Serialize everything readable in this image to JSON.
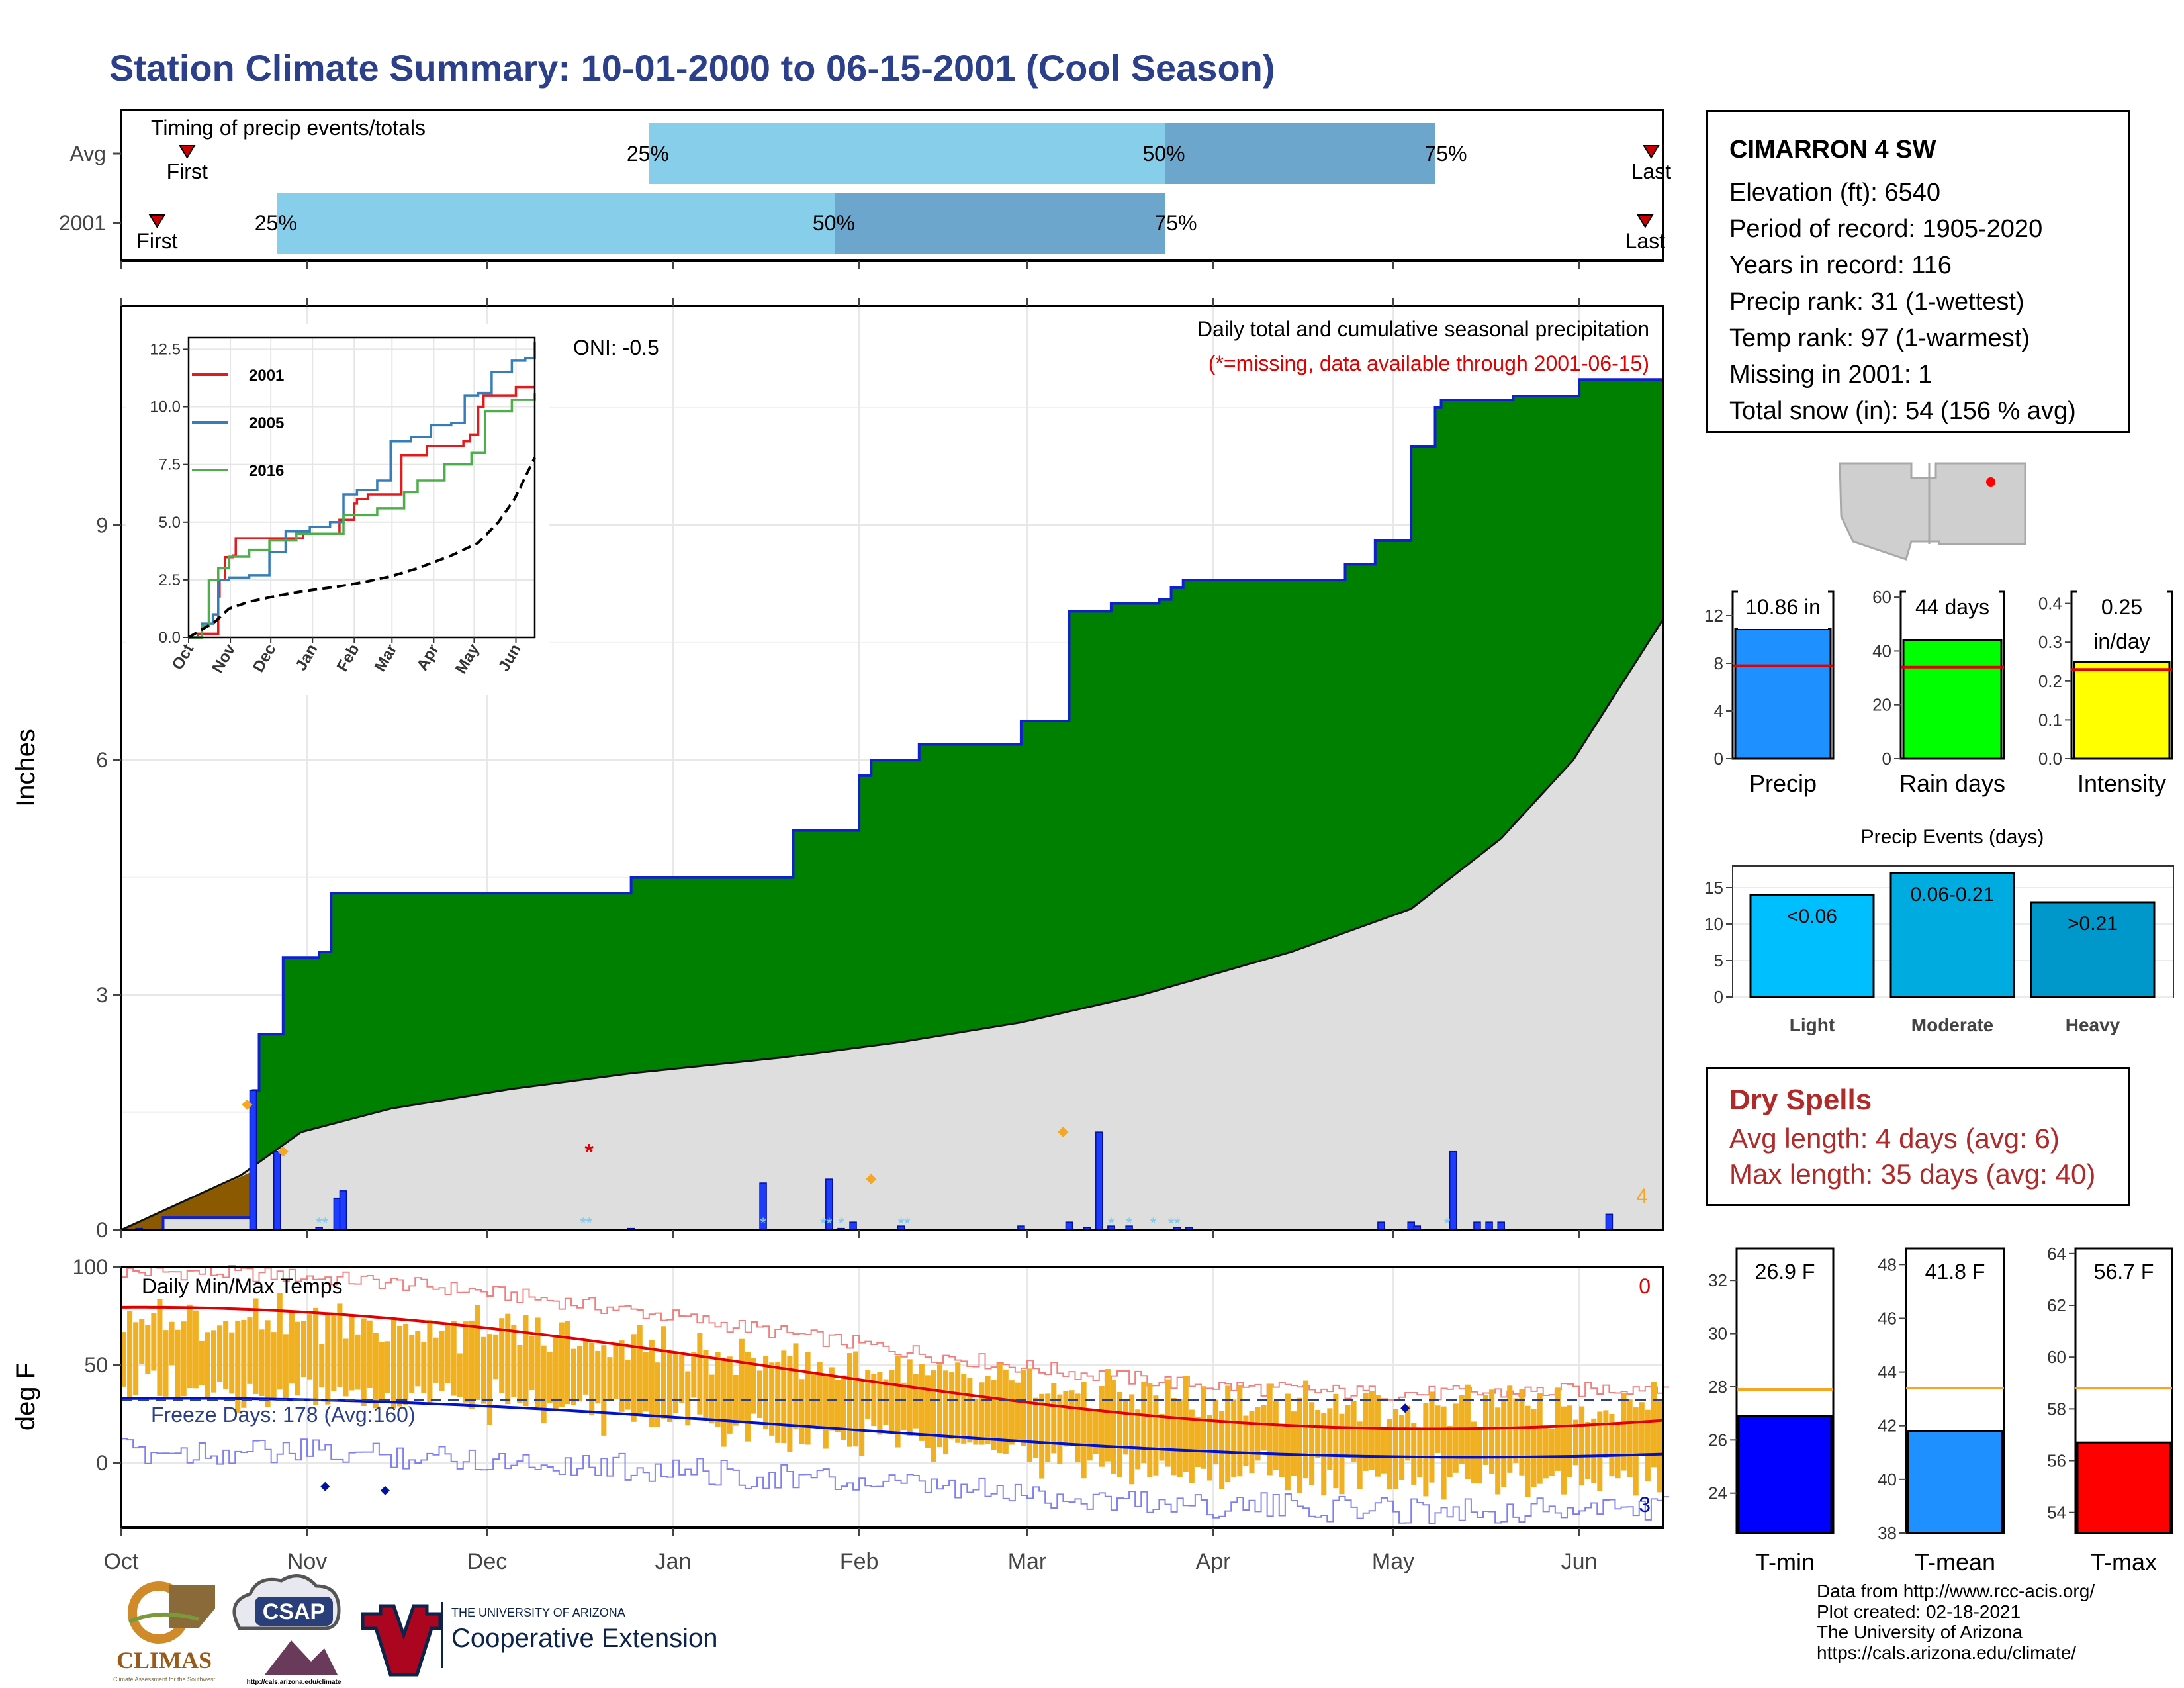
{
  "title": "Station Climate Summary: 10-01-2000 to 06-15-2001 (Cool Season)",
  "colors": {
    "title": "#2b3f8a",
    "light_blue": "#87ceeb",
    "mid_blue": "#6ca6cd",
    "green": "#008000",
    "brown": "#8b5a00",
    "grey": "#dedede",
    "precip_bar": "#1e90ff",
    "rain_bar": "#00ff00",
    "intensity_bar": "#ffff00",
    "tmin_bar": "#0000ff",
    "tmean_bar": "#1e90ff",
    "tmax_bar": "#ff0000",
    "dry_text": "#b02a2a",
    "temp_bar": "#f0b020"
  },
  "timing": {
    "title": "Timing of precip events/totals",
    "rows": [
      "Avg",
      "2001"
    ],
    "first_label": "First",
    "last_label": "Last",
    "q25_label": "25%",
    "q50_label": "50%",
    "q75_label": "75%",
    "x_domain_days": [
      0,
      257
    ],
    "avg": {
      "first": "2000-10-12",
      "q25": "2000-12-28",
      "q50": "2001-03-24",
      "q75": "2001-05-08",
      "last": "2001-06-13"
    },
    "y2001": {
      "first": "2000-10-07",
      "q25": "2000-10-27",
      "q50": "2001-01-28",
      "q75": "2001-03-24",
      "last": "2001-06-12"
    }
  },
  "precip_panel": {
    "title": "Daily total and cumulative seasonal precipitation",
    "missing_note": "(*=missing, data available through 2001-06-15)",
    "oni": "ONI: -0.5",
    "ylabel": "Inches",
    "yticks": [
      "0",
      "3",
      "6",
      "9"
    ],
    "yticks_val": [
      0,
      3,
      6,
      9
    ],
    "ylim": [
      0,
      11.8
    ],
    "corner_count": "4",
    "cumulative_steps": [
      [
        0,
        0
      ],
      [
        7,
        0.16
      ],
      [
        22,
        0.16
      ],
      [
        22,
        1.78
      ],
      [
        23,
        2.5
      ],
      [
        27,
        2.5
      ],
      [
        27,
        3.48
      ],
      [
        33,
        3.55
      ],
      [
        35,
        4.3
      ],
      [
        85,
        4.3
      ],
      [
        85,
        4.5
      ],
      [
        112,
        4.5
      ],
      [
        112,
        5.1
      ],
      [
        123,
        5.1
      ],
      [
        123,
        5.8
      ],
      [
        125,
        6.0
      ],
      [
        133,
        6.0
      ],
      [
        133,
        6.2
      ],
      [
        150,
        6.2
      ],
      [
        150,
        6.5
      ],
      [
        158,
        6.5
      ],
      [
        158,
        7.9
      ],
      [
        165,
        8.0
      ],
      [
        173,
        8.05
      ],
      [
        175,
        8.2
      ],
      [
        177,
        8.3
      ],
      [
        204,
        8.3
      ],
      [
        204,
        8.5
      ],
      [
        209,
        8.5
      ],
      [
        209,
        8.8
      ],
      [
        215,
        8.9
      ],
      [
        215,
        10.0
      ],
      [
        219,
        10.5
      ],
      [
        220,
        10.6
      ],
      [
        232,
        10.65
      ],
      [
        243,
        10.65
      ],
      [
        243,
        10.86
      ],
      [
        257,
        10.86
      ]
    ],
    "avg_cumulative": [
      [
        0,
        0
      ],
      [
        20,
        0.7
      ],
      [
        30,
        1.25
      ],
      [
        45,
        1.55
      ],
      [
        65,
        1.8
      ],
      [
        85,
        2.0
      ],
      [
        110,
        2.2
      ],
      [
        130,
        2.4
      ],
      [
        150,
        2.65
      ],
      [
        170,
        3.0
      ],
      [
        195,
        3.55
      ],
      [
        215,
        4.1
      ],
      [
        230,
        5.0
      ],
      [
        242,
        6.0
      ],
      [
        257,
        7.8
      ]
    ],
    "daily_bars": [
      [
        3,
        0.02
      ],
      [
        22,
        1.78
      ],
      [
        26,
        1.0
      ],
      [
        33,
        0.03
      ],
      [
        36,
        0.4
      ],
      [
        37,
        0.5
      ],
      [
        85,
        0.02
      ],
      [
        107,
        0.6
      ],
      [
        118,
        0.65
      ],
      [
        120,
        0.02
      ],
      [
        122,
        0.1
      ],
      [
        130,
        0.05
      ],
      [
        150,
        0.05
      ],
      [
        158,
        0.1
      ],
      [
        161,
        0.03
      ],
      [
        163,
        1.25
      ],
      [
        165,
        0.05
      ],
      [
        168,
        0.05
      ],
      [
        176,
        0.03
      ],
      [
        178,
        0.03
      ],
      [
        210,
        0.1
      ],
      [
        215,
        0.1
      ],
      [
        216,
        0.05
      ],
      [
        222,
        1.0
      ],
      [
        226,
        0.1
      ],
      [
        228,
        0.1
      ],
      [
        230,
        0.1
      ],
      [
        248,
        0.2
      ]
    ],
    "avg_daily_markers": [
      [
        21,
        1.6
      ],
      [
        27,
        1.0
      ],
      [
        157,
        1.25
      ],
      [
        125,
        0.65
      ]
    ],
    "missing_day": [
      78,
      1.0
    ]
  },
  "inset": {
    "yticks": [
      "0.0",
      "2.5",
      "5.0",
      "7.5",
      "10.0",
      "12.5"
    ],
    "yticks_val": [
      0,
      2.5,
      5,
      7.5,
      10,
      12.5
    ],
    "ylim": [
      0,
      13
    ],
    "xticks": [
      "Oct",
      "Nov",
      "Dec",
      "Jan",
      "Feb",
      "Mar",
      "Apr",
      "May",
      "Jun"
    ],
    "legend": [
      "2001",
      "2005",
      "2016"
    ],
    "series": [
      {
        "name": "2001",
        "color": "#e41a1c",
        "pts": [
          [
            0,
            0
          ],
          [
            7,
            0.16
          ],
          [
            22,
            1.78
          ],
          [
            23,
            2.5
          ],
          [
            27,
            3.48
          ],
          [
            33,
            3.55
          ],
          [
            35,
            4.3
          ],
          [
            85,
            4.3
          ],
          [
            85,
            4.5
          ],
          [
            112,
            4.5
          ],
          [
            112,
            5.1
          ],
          [
            123,
            5.1
          ],
          [
            123,
            5.8
          ],
          [
            125,
            6.0
          ],
          [
            133,
            6.0
          ],
          [
            133,
            6.2
          ],
          [
            150,
            6.2
          ],
          [
            158,
            7.9
          ],
          [
            177,
            8.3
          ],
          [
            204,
            8.3
          ],
          [
            204,
            8.5
          ],
          [
            209,
            8.8
          ],
          [
            215,
            10.0
          ],
          [
            219,
            10.5
          ],
          [
            243,
            10.65
          ],
          [
            243,
            10.86
          ],
          [
            257,
            10.86
          ]
        ]
      },
      {
        "name": "2005",
        "color": "#377eb8",
        "pts": [
          [
            0,
            0
          ],
          [
            10,
            0.6
          ],
          [
            18,
            1.0
          ],
          [
            22,
            2.5
          ],
          [
            30,
            2.6
          ],
          [
            45,
            2.7
          ],
          [
            60,
            3.7
          ],
          [
            72,
            4.6
          ],
          [
            90,
            4.8
          ],
          [
            105,
            5.0
          ],
          [
            115,
            6.2
          ],
          [
            125,
            6.4
          ],
          [
            140,
            6.8
          ],
          [
            150,
            8.5
          ],
          [
            165,
            8.7
          ],
          [
            180,
            9.2
          ],
          [
            195,
            9.3
          ],
          [
            205,
            10.5
          ],
          [
            215,
            10.6
          ],
          [
            225,
            11.5
          ],
          [
            240,
            12.0
          ],
          [
            250,
            12.1
          ],
          [
            257,
            12.8
          ]
        ]
      },
      {
        "name": "2016",
        "color": "#4daf4a",
        "pts": [
          [
            0,
            0
          ],
          [
            10,
            0.5
          ],
          [
            15,
            2.5
          ],
          [
            22,
            3.0
          ],
          [
            30,
            3.5
          ],
          [
            45,
            3.8
          ],
          [
            60,
            4.2
          ],
          [
            80,
            4.5
          ],
          [
            90,
            4.5
          ],
          [
            115,
            5.3
          ],
          [
            140,
            5.6
          ],
          [
            160,
            6.3
          ],
          [
            170,
            6.8
          ],
          [
            190,
            7.5
          ],
          [
            210,
            8.0
          ],
          [
            220,
            9.8
          ],
          [
            240,
            10.3
          ],
          [
            257,
            10.6
          ]
        ]
      },
      {
        "name": "avg",
        "color": "#000000",
        "pts": [
          [
            0,
            0
          ],
          [
            20,
            0.7
          ],
          [
            30,
            1.25
          ],
          [
            45,
            1.55
          ],
          [
            65,
            1.8
          ],
          [
            85,
            2.0
          ],
          [
            110,
            2.2
          ],
          [
            130,
            2.4
          ],
          [
            150,
            2.65
          ],
          [
            170,
            3.0
          ],
          [
            195,
            3.55
          ],
          [
            215,
            4.1
          ],
          [
            230,
            5.0
          ],
          [
            242,
            6.0
          ],
          [
            257,
            7.8
          ]
        ]
      }
    ]
  },
  "temp_panel": {
    "title": "Daily Min/Max Temps",
    "ylabel": "deg F",
    "yticks": [
      "0",
      "50",
      "100"
    ],
    "yticks_val": [
      0,
      50,
      100
    ],
    "ylim": [
      -33,
      100
    ],
    "freeze_label": "Freeze Days: 178 (Avg:160)",
    "freeze_line": 32,
    "corner_top": "0",
    "corner_bottom": "3"
  },
  "x_axis": {
    "months": [
      "Oct",
      "Nov",
      "Dec",
      "Jan",
      "Feb",
      "Mar",
      "Apr",
      "May",
      "Jun"
    ],
    "month_days": [
      0,
      31,
      61,
      92,
      123,
      151,
      182,
      212,
      243
    ]
  },
  "station": {
    "name": "CIMARRON 4 SW",
    "lines": [
      "Elevation (ft): 6540",
      "Period of record: 1905-2020",
      "Years in record: 116",
      "Precip rank: 31 (1-wettest)",
      "Temp rank: 97 (1-warmest)",
      "Missing in 2001: 1",
      "Total snow (in): 54 (156 % avg)"
    ]
  },
  "summary_bars": [
    {
      "label": "Precip",
      "value": 10.86,
      "value_label": "10.86 in",
      "avg": 7.8,
      "yticks": [
        0,
        4,
        8,
        12
      ],
      "ylim": [
        0,
        14
      ],
      "color": "#1e90ff"
    },
    {
      "label": "Rain days",
      "value": 44,
      "value_label": "44 days",
      "avg": 34,
      "yticks": [
        0,
        20,
        40,
        60
      ],
      "ylim": [
        0,
        62
      ],
      "color": "#00ff00"
    },
    {
      "label": "Intensity",
      "value": 0.25,
      "value_label": "0.25",
      "value_label2": "in/day",
      "avg": 0.23,
      "yticks": [
        0.0,
        0.1,
        0.2,
        0.3,
        0.4
      ],
      "ylim": [
        0,
        0.43
      ],
      "color": "#ffff00"
    }
  ],
  "precip_events": {
    "title": "Precip Events (days)",
    "categories": [
      "Light",
      "Moderate",
      "Heavy"
    ],
    "values": [
      14,
      17,
      13
    ],
    "bar_labels": [
      "<0.06",
      "0.06-0.21",
      ">0.21"
    ],
    "yticks": [
      0,
      5,
      10,
      15
    ],
    "ylim": [
      0,
      18
    ],
    "colors": [
      "#00bfff",
      "#00acdf",
      "#0098cb"
    ]
  },
  "dry_spells": {
    "title": "Dry Spells",
    "avg_length": "Avg length: 4 days (avg: 6)",
    "max_length": "Max length: 35 days (avg: 40)"
  },
  "temp_bars": [
    {
      "label": "T-min",
      "value": 26.9,
      "value_label": "26.9 F",
      "avg": 27.9,
      "yticks": [
        24,
        26,
        28,
        30,
        32
      ],
      "ylim": [
        22.5,
        33.2
      ],
      "color": "#0000ff"
    },
    {
      "label": "T-mean",
      "value": 41.8,
      "value_label": "41.8 F",
      "avg": 43.4,
      "yticks": [
        38,
        40,
        42,
        44,
        46,
        48
      ],
      "ylim": [
        38,
        48.6
      ],
      "color": "#1e90ff"
    },
    {
      "label": "T-max",
      "value": 56.7,
      "value_label": "56.7 F",
      "avg": 58.8,
      "yticks": [
        54,
        56,
        58,
        60,
        62,
        64
      ],
      "ylim": [
        53.2,
        64.2
      ],
      "color": "#ff0000"
    }
  ],
  "footer": {
    "lines": [
      "Data from http://www.rcc-acis.org/",
      "Plot created: 02-18-2021",
      "The University of Arizona",
      "https://cals.arizona.edu/climate/"
    ]
  },
  "logos": {
    "climas": "CLIMAS",
    "climas_sub": "Climate Assessment for the Southwest",
    "csap": "CSAP",
    "csap_url": "http://cals.arizona.edu/climate",
    "ua_small": "THE UNIVERSITY OF ARIZONA",
    "ua_big": "Cooperative Extension"
  }
}
